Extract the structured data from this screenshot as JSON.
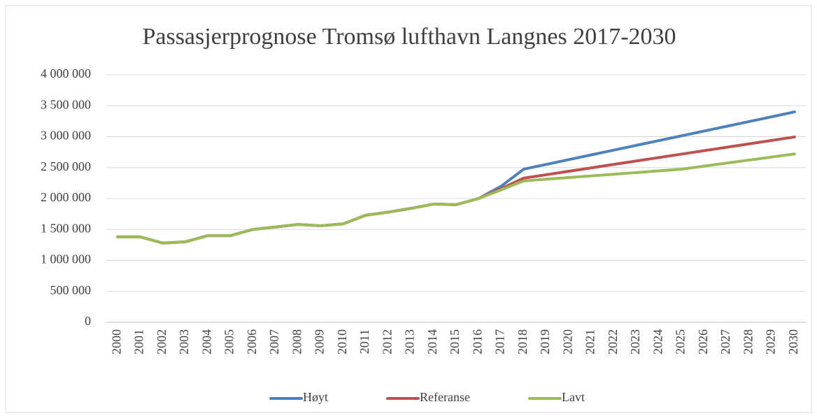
{
  "chart_data": {
    "type": "line",
    "title": "Passasjerprognose Tromsø lufthavn Langnes 2017-2030",
    "categories": [
      "2000",
      "2001",
      "2002",
      "2003",
      "2004",
      "2005",
      "2006",
      "2007",
      "2008",
      "2009",
      "2010",
      "2011",
      "2012",
      "2013",
      "2014",
      "2015",
      "2016",
      "2017",
      "2018",
      "2019",
      "2020",
      "2021",
      "2022",
      "2023",
      "2024",
      "2025",
      "2026",
      "2027",
      "2028",
      "2029",
      "2030"
    ],
    "series": [
      {
        "name": "Høyt",
        "color": "#4f81bd",
        "values": [
          1380000,
          1380000,
          1280000,
          1300000,
          1400000,
          1400000,
          1500000,
          1540000,
          1580000,
          1560000,
          1590000,
          1730000,
          1780000,
          1840000,
          1910000,
          1900000,
          2000000,
          2200000,
          2475000,
          2552000,
          2629000,
          2706000,
          2783000,
          2860000,
          2937000,
          3014000,
          3091000,
          3168000,
          3245000,
          3322000,
          3400000
        ]
      },
      {
        "name": "Referanse",
        "color": "#c0504d",
        "values": [
          1380000,
          1380000,
          1280000,
          1300000,
          1400000,
          1400000,
          1500000,
          1540000,
          1580000,
          1560000,
          1590000,
          1730000,
          1780000,
          1840000,
          1910000,
          1900000,
          2000000,
          2160000,
          2330000,
          2385000,
          2441000,
          2496000,
          2552000,
          2607000,
          2663000,
          2718000,
          2774000,
          2829000,
          2884000,
          2940000,
          2995000
        ]
      },
      {
        "name": "Lavt",
        "color": "#9bbb59",
        "values": [
          1380000,
          1380000,
          1280000,
          1300000,
          1400000,
          1400000,
          1500000,
          1540000,
          1580000,
          1560000,
          1590000,
          1730000,
          1780000,
          1840000,
          1910000,
          1900000,
          2000000,
          2140000,
          2285000,
          2312000,
          2339000,
          2366000,
          2393000,
          2420000,
          2448000,
          2475000,
          2524000,
          2573000,
          2622000,
          2671000,
          2720000
        ]
      }
    ],
    "ylim": [
      0,
      4000000
    ],
    "yticks": [
      0,
      {
        "value": 500000,
        "label": "500 000"
      },
      {
        "value": 1000000,
        "label": "1 000 000"
      },
      {
        "value": 1500000,
        "label": "1 500 000"
      },
      {
        "value": 2000000,
        "label": "2 000 000"
      },
      {
        "value": 2500000,
        "label": "2 500 000"
      },
      {
        "value": 3000000,
        "label": "3 000 000"
      },
      {
        "value": 3500000,
        "label": "3 500 000"
      },
      {
        "value": 4000000,
        "label": "4 000 000"
      }
    ],
    "grid": true,
    "legend": "bottom"
  }
}
